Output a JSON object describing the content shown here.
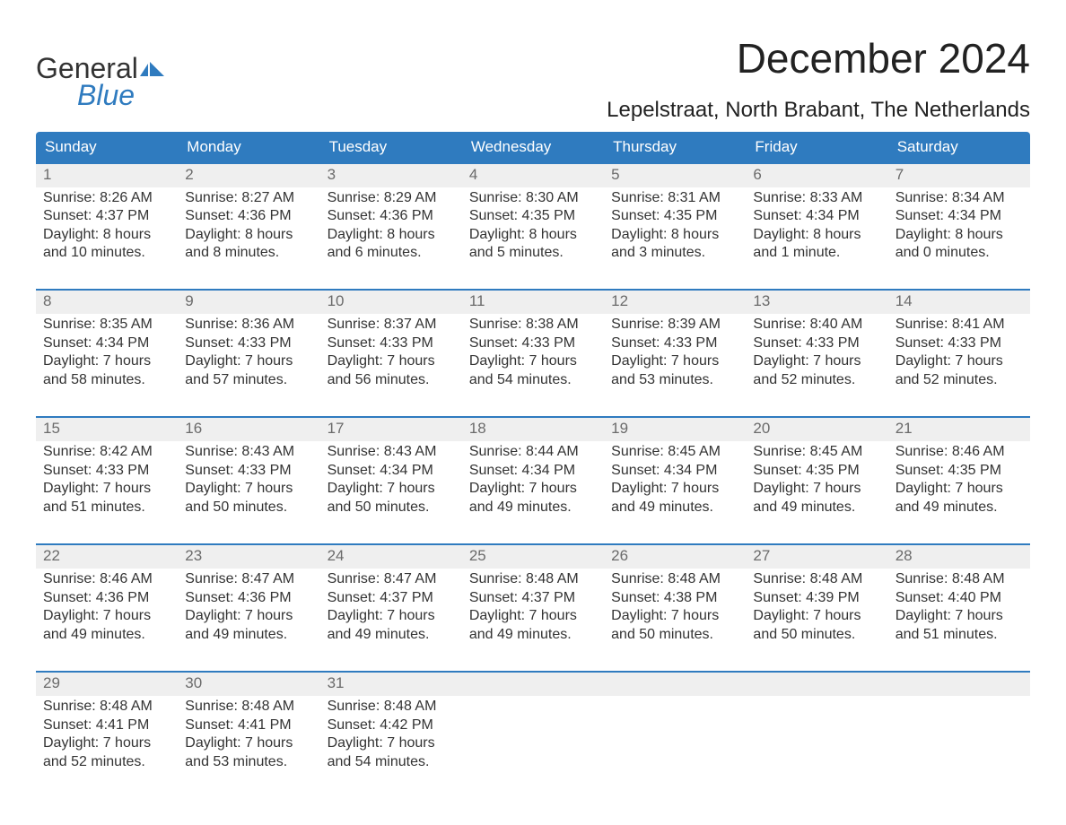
{
  "brand": {
    "name_general": "General",
    "name_blue": "Blue",
    "accent_color": "#2f7bbf"
  },
  "title": "December 2024",
  "location": "Lepelstraat, North Brabant, The Netherlands",
  "colors": {
    "header_bg": "#2f7bbf",
    "header_text": "#ffffff",
    "daynum_bg": "#efefef",
    "daynum_text": "#6b6b6b",
    "week_border": "#2f7bbf",
    "body_text": "#333333",
    "page_bg": "#ffffff"
  },
  "fonts": {
    "title_size_pt": 34,
    "location_size_pt": 18,
    "weekday_size_pt": 13,
    "daynum_size_pt": 13,
    "body_size_pt": 12
  },
  "weekdays": [
    "Sunday",
    "Monday",
    "Tuesday",
    "Wednesday",
    "Thursday",
    "Friday",
    "Saturday"
  ],
  "weeks": [
    {
      "days": [
        {
          "num": "1",
          "sunrise": "Sunrise: 8:26 AM",
          "sunset": "Sunset: 4:37 PM",
          "daylight1": "Daylight: 8 hours",
          "daylight2": "and 10 minutes."
        },
        {
          "num": "2",
          "sunrise": "Sunrise: 8:27 AM",
          "sunset": "Sunset: 4:36 PM",
          "daylight1": "Daylight: 8 hours",
          "daylight2": "and 8 minutes."
        },
        {
          "num": "3",
          "sunrise": "Sunrise: 8:29 AM",
          "sunset": "Sunset: 4:36 PM",
          "daylight1": "Daylight: 8 hours",
          "daylight2": "and 6 minutes."
        },
        {
          "num": "4",
          "sunrise": "Sunrise: 8:30 AM",
          "sunset": "Sunset: 4:35 PM",
          "daylight1": "Daylight: 8 hours",
          "daylight2": "and 5 minutes."
        },
        {
          "num": "5",
          "sunrise": "Sunrise: 8:31 AM",
          "sunset": "Sunset: 4:35 PM",
          "daylight1": "Daylight: 8 hours",
          "daylight2": "and 3 minutes."
        },
        {
          "num": "6",
          "sunrise": "Sunrise: 8:33 AM",
          "sunset": "Sunset: 4:34 PM",
          "daylight1": "Daylight: 8 hours",
          "daylight2": "and 1 minute."
        },
        {
          "num": "7",
          "sunrise": "Sunrise: 8:34 AM",
          "sunset": "Sunset: 4:34 PM",
          "daylight1": "Daylight: 8 hours",
          "daylight2": "and 0 minutes."
        }
      ]
    },
    {
      "days": [
        {
          "num": "8",
          "sunrise": "Sunrise: 8:35 AM",
          "sunset": "Sunset: 4:34 PM",
          "daylight1": "Daylight: 7 hours",
          "daylight2": "and 58 minutes."
        },
        {
          "num": "9",
          "sunrise": "Sunrise: 8:36 AM",
          "sunset": "Sunset: 4:33 PM",
          "daylight1": "Daylight: 7 hours",
          "daylight2": "and 57 minutes."
        },
        {
          "num": "10",
          "sunrise": "Sunrise: 8:37 AM",
          "sunset": "Sunset: 4:33 PM",
          "daylight1": "Daylight: 7 hours",
          "daylight2": "and 56 minutes."
        },
        {
          "num": "11",
          "sunrise": "Sunrise: 8:38 AM",
          "sunset": "Sunset: 4:33 PM",
          "daylight1": "Daylight: 7 hours",
          "daylight2": "and 54 minutes."
        },
        {
          "num": "12",
          "sunrise": "Sunrise: 8:39 AM",
          "sunset": "Sunset: 4:33 PM",
          "daylight1": "Daylight: 7 hours",
          "daylight2": "and 53 minutes."
        },
        {
          "num": "13",
          "sunrise": "Sunrise: 8:40 AM",
          "sunset": "Sunset: 4:33 PM",
          "daylight1": "Daylight: 7 hours",
          "daylight2": "and 52 minutes."
        },
        {
          "num": "14",
          "sunrise": "Sunrise: 8:41 AM",
          "sunset": "Sunset: 4:33 PM",
          "daylight1": "Daylight: 7 hours",
          "daylight2": "and 52 minutes."
        }
      ]
    },
    {
      "days": [
        {
          "num": "15",
          "sunrise": "Sunrise: 8:42 AM",
          "sunset": "Sunset: 4:33 PM",
          "daylight1": "Daylight: 7 hours",
          "daylight2": "and 51 minutes."
        },
        {
          "num": "16",
          "sunrise": "Sunrise: 8:43 AM",
          "sunset": "Sunset: 4:33 PM",
          "daylight1": "Daylight: 7 hours",
          "daylight2": "and 50 minutes."
        },
        {
          "num": "17",
          "sunrise": "Sunrise: 8:43 AM",
          "sunset": "Sunset: 4:34 PM",
          "daylight1": "Daylight: 7 hours",
          "daylight2": "and 50 minutes."
        },
        {
          "num": "18",
          "sunrise": "Sunrise: 8:44 AM",
          "sunset": "Sunset: 4:34 PM",
          "daylight1": "Daylight: 7 hours",
          "daylight2": "and 49 minutes."
        },
        {
          "num": "19",
          "sunrise": "Sunrise: 8:45 AM",
          "sunset": "Sunset: 4:34 PM",
          "daylight1": "Daylight: 7 hours",
          "daylight2": "and 49 minutes."
        },
        {
          "num": "20",
          "sunrise": "Sunrise: 8:45 AM",
          "sunset": "Sunset: 4:35 PM",
          "daylight1": "Daylight: 7 hours",
          "daylight2": "and 49 minutes."
        },
        {
          "num": "21",
          "sunrise": "Sunrise: 8:46 AM",
          "sunset": "Sunset: 4:35 PM",
          "daylight1": "Daylight: 7 hours",
          "daylight2": "and 49 minutes."
        }
      ]
    },
    {
      "days": [
        {
          "num": "22",
          "sunrise": "Sunrise: 8:46 AM",
          "sunset": "Sunset: 4:36 PM",
          "daylight1": "Daylight: 7 hours",
          "daylight2": "and 49 minutes."
        },
        {
          "num": "23",
          "sunrise": "Sunrise: 8:47 AM",
          "sunset": "Sunset: 4:36 PM",
          "daylight1": "Daylight: 7 hours",
          "daylight2": "and 49 minutes."
        },
        {
          "num": "24",
          "sunrise": "Sunrise: 8:47 AM",
          "sunset": "Sunset: 4:37 PM",
          "daylight1": "Daylight: 7 hours",
          "daylight2": "and 49 minutes."
        },
        {
          "num": "25",
          "sunrise": "Sunrise: 8:48 AM",
          "sunset": "Sunset: 4:37 PM",
          "daylight1": "Daylight: 7 hours",
          "daylight2": "and 49 minutes."
        },
        {
          "num": "26",
          "sunrise": "Sunrise: 8:48 AM",
          "sunset": "Sunset: 4:38 PM",
          "daylight1": "Daylight: 7 hours",
          "daylight2": "and 50 minutes."
        },
        {
          "num": "27",
          "sunrise": "Sunrise: 8:48 AM",
          "sunset": "Sunset: 4:39 PM",
          "daylight1": "Daylight: 7 hours",
          "daylight2": "and 50 minutes."
        },
        {
          "num": "28",
          "sunrise": "Sunrise: 8:48 AM",
          "sunset": "Sunset: 4:40 PM",
          "daylight1": "Daylight: 7 hours",
          "daylight2": "and 51 minutes."
        }
      ]
    },
    {
      "days": [
        {
          "num": "29",
          "sunrise": "Sunrise: 8:48 AM",
          "sunset": "Sunset: 4:41 PM",
          "daylight1": "Daylight: 7 hours",
          "daylight2": "and 52 minutes."
        },
        {
          "num": "30",
          "sunrise": "Sunrise: 8:48 AM",
          "sunset": "Sunset: 4:41 PM",
          "daylight1": "Daylight: 7 hours",
          "daylight2": "and 53 minutes."
        },
        {
          "num": "31",
          "sunrise": "Sunrise: 8:48 AM",
          "sunset": "Sunset: 4:42 PM",
          "daylight1": "Daylight: 7 hours",
          "daylight2": "and 54 minutes."
        },
        {
          "empty": true
        },
        {
          "empty": true
        },
        {
          "empty": true
        },
        {
          "empty": true
        }
      ]
    }
  ]
}
